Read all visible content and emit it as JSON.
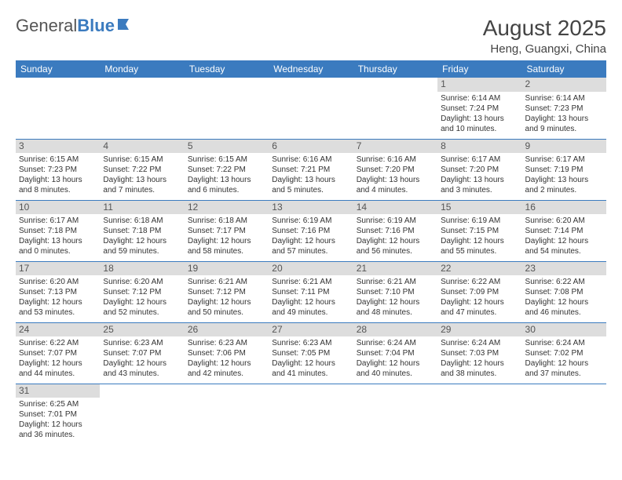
{
  "logo": {
    "textGray": "General",
    "textBlue": "Blue"
  },
  "title": "August 2025",
  "location": "Heng, Guangxi, China",
  "headerColor": "#3b7bbf",
  "dayBarColor": "#dddddd",
  "textColor": "#333333",
  "dayHeaders": [
    "Sunday",
    "Monday",
    "Tuesday",
    "Wednesday",
    "Thursday",
    "Friday",
    "Saturday"
  ],
  "weeks": [
    [
      null,
      null,
      null,
      null,
      null,
      {
        "n": "1",
        "sunrise": "6:14 AM",
        "sunset": "7:24 PM",
        "dlH": "13",
        "dlM": "10"
      },
      {
        "n": "2",
        "sunrise": "6:14 AM",
        "sunset": "7:23 PM",
        "dlH": "13",
        "dlM": "9"
      }
    ],
    [
      {
        "n": "3",
        "sunrise": "6:15 AM",
        "sunset": "7:23 PM",
        "dlH": "13",
        "dlM": "8"
      },
      {
        "n": "4",
        "sunrise": "6:15 AM",
        "sunset": "7:22 PM",
        "dlH": "13",
        "dlM": "7"
      },
      {
        "n": "5",
        "sunrise": "6:15 AM",
        "sunset": "7:22 PM",
        "dlH": "13",
        "dlM": "6"
      },
      {
        "n": "6",
        "sunrise": "6:16 AM",
        "sunset": "7:21 PM",
        "dlH": "13",
        "dlM": "5"
      },
      {
        "n": "7",
        "sunrise": "6:16 AM",
        "sunset": "7:20 PM",
        "dlH": "13",
        "dlM": "4"
      },
      {
        "n": "8",
        "sunrise": "6:17 AM",
        "sunset": "7:20 PM",
        "dlH": "13",
        "dlM": "3"
      },
      {
        "n": "9",
        "sunrise": "6:17 AM",
        "sunset": "7:19 PM",
        "dlH": "13",
        "dlM": "2"
      }
    ],
    [
      {
        "n": "10",
        "sunrise": "6:17 AM",
        "sunset": "7:18 PM",
        "dlH": "13",
        "dlM": "0"
      },
      {
        "n": "11",
        "sunrise": "6:18 AM",
        "sunset": "7:18 PM",
        "dlH": "12",
        "dlM": "59"
      },
      {
        "n": "12",
        "sunrise": "6:18 AM",
        "sunset": "7:17 PM",
        "dlH": "12",
        "dlM": "58"
      },
      {
        "n": "13",
        "sunrise": "6:19 AM",
        "sunset": "7:16 PM",
        "dlH": "12",
        "dlM": "57"
      },
      {
        "n": "14",
        "sunrise": "6:19 AM",
        "sunset": "7:16 PM",
        "dlH": "12",
        "dlM": "56"
      },
      {
        "n": "15",
        "sunrise": "6:19 AM",
        "sunset": "7:15 PM",
        "dlH": "12",
        "dlM": "55"
      },
      {
        "n": "16",
        "sunrise": "6:20 AM",
        "sunset": "7:14 PM",
        "dlH": "12",
        "dlM": "54"
      }
    ],
    [
      {
        "n": "17",
        "sunrise": "6:20 AM",
        "sunset": "7:13 PM",
        "dlH": "12",
        "dlM": "53"
      },
      {
        "n": "18",
        "sunrise": "6:20 AM",
        "sunset": "7:12 PM",
        "dlH": "12",
        "dlM": "52"
      },
      {
        "n": "19",
        "sunrise": "6:21 AM",
        "sunset": "7:12 PM",
        "dlH": "12",
        "dlM": "50"
      },
      {
        "n": "20",
        "sunrise": "6:21 AM",
        "sunset": "7:11 PM",
        "dlH": "12",
        "dlM": "49"
      },
      {
        "n": "21",
        "sunrise": "6:21 AM",
        "sunset": "7:10 PM",
        "dlH": "12",
        "dlM": "48"
      },
      {
        "n": "22",
        "sunrise": "6:22 AM",
        "sunset": "7:09 PM",
        "dlH": "12",
        "dlM": "47"
      },
      {
        "n": "23",
        "sunrise": "6:22 AM",
        "sunset": "7:08 PM",
        "dlH": "12",
        "dlM": "46"
      }
    ],
    [
      {
        "n": "24",
        "sunrise": "6:22 AM",
        "sunset": "7:07 PM",
        "dlH": "12",
        "dlM": "44"
      },
      {
        "n": "25",
        "sunrise": "6:23 AM",
        "sunset": "7:07 PM",
        "dlH": "12",
        "dlM": "43"
      },
      {
        "n": "26",
        "sunrise": "6:23 AM",
        "sunset": "7:06 PM",
        "dlH": "12",
        "dlM": "42"
      },
      {
        "n": "27",
        "sunrise": "6:23 AM",
        "sunset": "7:05 PM",
        "dlH": "12",
        "dlM": "41"
      },
      {
        "n": "28",
        "sunrise": "6:24 AM",
        "sunset": "7:04 PM",
        "dlH": "12",
        "dlM": "40"
      },
      {
        "n": "29",
        "sunrise": "6:24 AM",
        "sunset": "7:03 PM",
        "dlH": "12",
        "dlM": "38"
      },
      {
        "n": "30",
        "sunrise": "6:24 AM",
        "sunset": "7:02 PM",
        "dlH": "12",
        "dlM": "37"
      }
    ],
    [
      {
        "n": "31",
        "sunrise": "6:25 AM",
        "sunset": "7:01 PM",
        "dlH": "12",
        "dlM": "36"
      },
      null,
      null,
      null,
      null,
      null,
      null
    ]
  ],
  "labels": {
    "sunrise": "Sunrise:",
    "sunset": "Sunset:",
    "daylight": "Daylight:",
    "hours": "hours",
    "and": "and",
    "minutes": "minutes."
  }
}
